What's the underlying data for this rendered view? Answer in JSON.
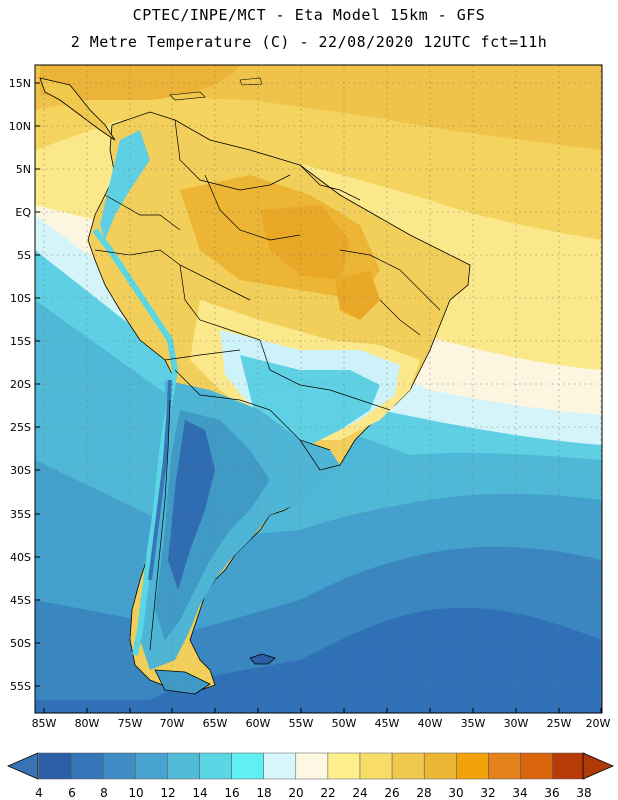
{
  "header": {
    "line1": "CPTEC/INPE/MCT -  Eta Model 15km - GFS",
    "line2": "2 Metre Temperature (C) - 22/08/2020 12UTC fct=11h"
  },
  "map": {
    "lat_range": [
      -58,
      17
    ],
    "lon_range": [
      -86,
      -20
    ],
    "lat_ticks": [
      "15N",
      "10N",
      "5N",
      "EQ",
      "5S",
      "10S",
      "15S",
      "20S",
      "25S",
      "30S",
      "35S",
      "40S",
      "45S",
      "50S",
      "55S"
    ],
    "lon_ticks": [
      "85W",
      "80W",
      "75W",
      "70W",
      "65W",
      "60W",
      "55W",
      "50W",
      "45W",
      "40W",
      "35W",
      "30W",
      "25W",
      "20W"
    ],
    "grid": "dotted"
  },
  "colorbar": {
    "labels": [
      "4",
      "6",
      "8",
      "10",
      "12",
      "14",
      "16",
      "18",
      "20",
      "22",
      "24",
      "26",
      "28",
      "30",
      "32",
      "34",
      "36",
      "38"
    ],
    "colors": [
      "#2a5fa8",
      "#3576b8",
      "#3f8dc4",
      "#48a4cf",
      "#52bcd8",
      "#5ad6e4",
      "#60f0f4",
      "#d8f6fc",
      "#fdf8e4",
      "#fdf08c",
      "#f7dc68",
      "#f0c94c",
      "#ecb634",
      "#f2a20a",
      "#e4821c",
      "#d8640c",
      "#b83c08"
    ],
    "low_color": "#3a73b4",
    "high_color": "#ae3a08"
  }
}
